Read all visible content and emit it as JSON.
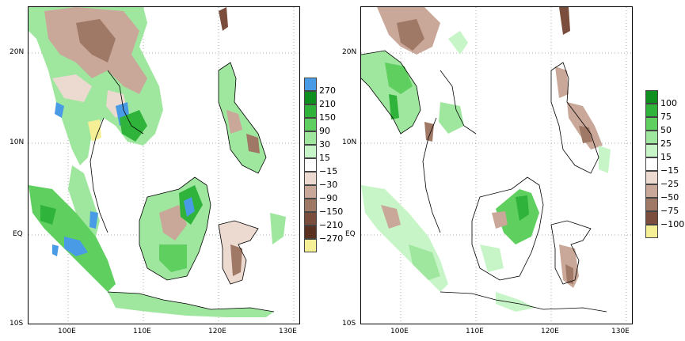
{
  "panels": [
    {
      "id": "left",
      "lat_ticks": [
        "20N",
        "10N",
        "EQ",
        "10S"
      ],
      "lon_ticks": [
        "100E",
        "110E",
        "120E",
        "130E"
      ],
      "legend": {
        "labels": [
          "270",
          "210",
          "150",
          "90",
          "30",
          "15",
          "−15",
          "−30",
          "−90",
          "−150",
          "−210",
          "−270"
        ],
        "colors": [
          "#4a9be6",
          "#0f8f1f",
          "#2fb33a",
          "#5fcf5f",
          "#9fe69f",
          "#c8f5c8",
          "#ffffff",
          "#ecd9d0",
          "#c9a89a",
          "#a07866",
          "#7a4d3c",
          "#5a3020",
          "#f5ef96"
        ]
      }
    },
    {
      "id": "right",
      "lat_ticks": [
        "20N",
        "10N",
        "EQ",
        "10S"
      ],
      "lon_ticks": [
        "100E",
        "110E",
        "120E",
        "130E"
      ],
      "legend": {
        "labels": [
          "100",
          "75",
          "50",
          "25",
          "15",
          "−15",
          "−25",
          "−50",
          "−75",
          "−100"
        ],
        "colors": [
          "#0f8f1f",
          "#2fb33a",
          "#5fcf5f",
          "#9fe69f",
          "#c8f5c8",
          "#ffffff",
          "#ecd9d0",
          "#c9a89a",
          "#a07866",
          "#7a4d3c",
          "#f5ef96"
        ]
      }
    }
  ]
}
